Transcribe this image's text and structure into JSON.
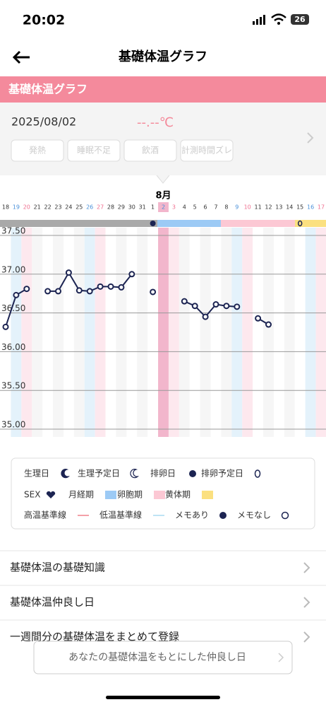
{
  "status": {
    "time": "20:02",
    "battery": "26"
  },
  "header": {
    "title": "基礎体温グラフ"
  },
  "section": {
    "title": "基礎体温グラフ",
    "date": "2025/08/02",
    "temp": "--.--℃",
    "tags": [
      "発熱",
      "睡眠不足",
      "飲酒",
      "計測時間ズレ"
    ]
  },
  "chart_data": {
    "type": "line",
    "month": "8月",
    "categories": [
      "18",
      "19",
      "20",
      "21",
      "22",
      "23",
      "24",
      "25",
      "26",
      "27",
      "28",
      "29",
      "30",
      "31",
      "1",
      "2",
      "3",
      "4",
      "5",
      "6",
      "7",
      "8",
      "9",
      "10",
      "11",
      "12",
      "13",
      "14",
      "15",
      "16",
      "17"
    ],
    "values": [
      36.32,
      36.73,
      36.81,
      null,
      36.78,
      36.78,
      37.02,
      36.79,
      36.78,
      36.84,
      36.84,
      36.83,
      37.0,
      null,
      36.77,
      null,
      null,
      36.65,
      36.59,
      36.45,
      36.61,
      36.59,
      36.58,
      null,
      36.43,
      36.35,
      null,
      null,
      null,
      null,
      null
    ],
    "color": "#1c2452",
    "ylim": [
      34.9,
      37.6
    ],
    "yticks": [
      {
        "value": 37.5,
        "label": "37.50"
      },
      {
        "value": 37,
        "label": "37.00"
      },
      {
        "value": 36.5,
        "label": "36.50"
      },
      {
        "value": 36,
        "label": "36.00"
      },
      {
        "value": 35.5,
        "label": "35.50"
      },
      {
        "value": 35,
        "label": "35.00"
      }
    ],
    "grid": true
  },
  "legend": [
    "生理日",
    "生理予定日",
    "排卵日",
    "排卵予定日",
    "SEX",
    "月経期",
    "卵胞期",
    "黄体期",
    "高温基準線",
    "低温基準線",
    "メモあり",
    "メモなし"
  ],
  "menu": [
    "基礎体温の基礎知識",
    "基礎体温仲良し日",
    "一週間分の基礎体温をまとめて登録"
  ],
  "button": "あなたの基礎体温をもとにした仲良し日"
}
